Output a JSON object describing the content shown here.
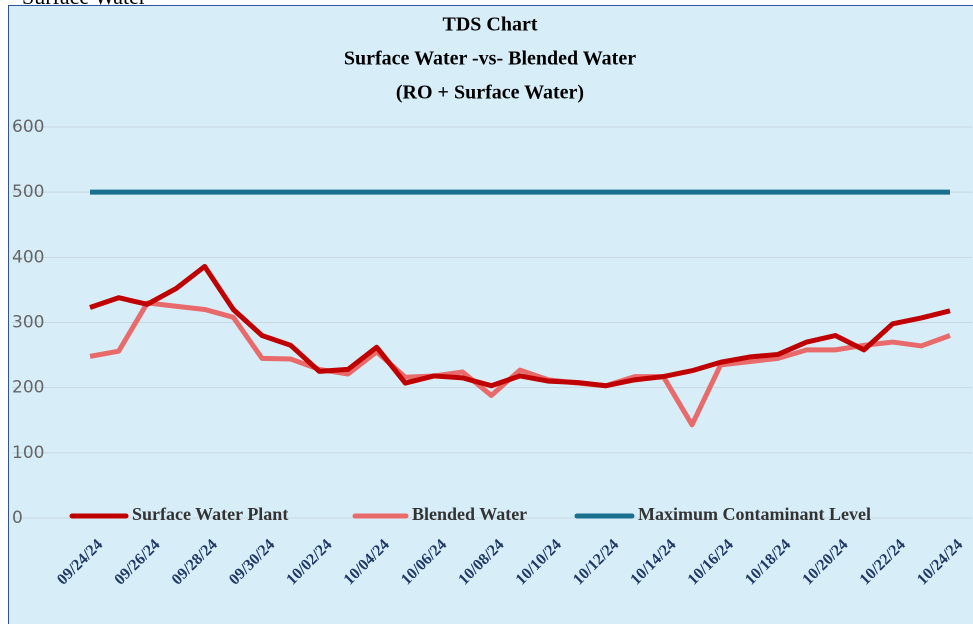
{
  "page_heading": "Surface Water",
  "chart_data": {
    "type": "line",
    "title": "TDS Chart",
    "subtitle": [
      "Surface Water -vs- Blended Water",
      "(RO + Surface Water)"
    ],
    "categories": [
      "09/24/24",
      null,
      "09/26/24",
      null,
      "09/28/24",
      null,
      "09/30/24",
      null,
      "10/02/24",
      null,
      "10/04/24",
      null,
      "10/06/24",
      null,
      "10/08/24",
      null,
      "10/10/24",
      null,
      "10/12/24",
      null,
      "10/14/24",
      null,
      "10/16/24",
      null,
      "10/18/24",
      null,
      "10/20/24",
      null,
      "10/22/24",
      null,
      "10/24/24"
    ],
    "series": [
      {
        "name": "Surface Water Plant",
        "color": "#c00000",
        "values": [
          323,
          338,
          328,
          352,
          386,
          320,
          280,
          265,
          225,
          228,
          262,
          207,
          218,
          215,
          203,
          218,
          210,
          208,
          203,
          212,
          217,
          226,
          239,
          247,
          251,
          270,
          280,
          258,
          298,
          307,
          318
        ]
      },
      {
        "name": "Blended Water",
        "color": "#e96a6a",
        "values": [
          248,
          256,
          330,
          325,
          320,
          308,
          245,
          244,
          228,
          221,
          255,
          216,
          218,
          224,
          188,
          227,
          212,
          207,
          203,
          217,
          217,
          143,
          235,
          240,
          245,
          258,
          258,
          265,
          270,
          264,
          280
        ]
      },
      {
        "name": "Maximum Contaminant Level",
        "color": "#1a6e8e",
        "values": [
          500,
          500,
          500,
          500,
          500,
          500,
          500,
          500,
          500,
          500,
          500,
          500,
          500,
          500,
          500,
          500,
          500,
          500,
          500,
          500,
          500,
          500,
          500,
          500,
          500,
          500,
          500,
          500,
          500,
          500,
          500
        ]
      }
    ],
    "ylim": [
      0,
      600
    ],
    "yticks": [
      0,
      100,
      200,
      300,
      400,
      500,
      600
    ],
    "grid": true,
    "legend": "bottom"
  }
}
